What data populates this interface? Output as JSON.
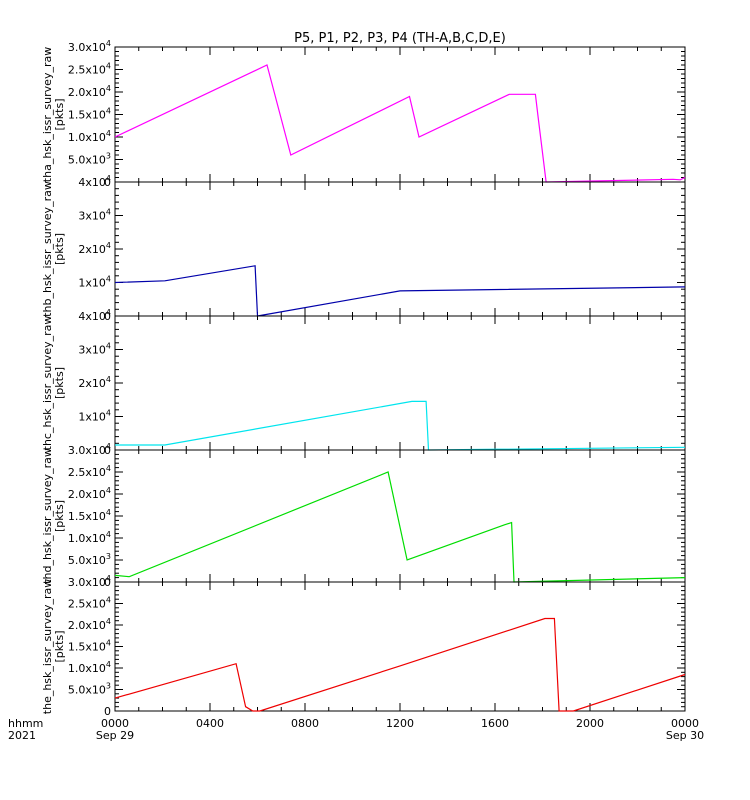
{
  "title": "P5, P1, P2, P3, P4 (TH-A,B,C,D,E)",
  "colors": {
    "tha": "#ff00ff",
    "thb": "#0000aa",
    "thc": "#00e5ee",
    "thd": "#00dd00",
    "the": "#ee0000",
    "axes": "#000000",
    "background": "#ffffff"
  },
  "x_axis": {
    "row_label_top": "hhmm",
    "row_label_bottom": "2021",
    "tick_labels": [
      "0000",
      "0400",
      "0800",
      "1200",
      "1600",
      "2000",
      "0000"
    ],
    "date_labels": [
      {
        "at_hour": 0,
        "text": "Sep 29"
      },
      {
        "at_hour": 24,
        "text": "Sep 30"
      }
    ]
  },
  "chart_data": [
    {
      "type": "line",
      "probe": "tha",
      "ylabel": "tha_hsk_issr_survey_raw",
      "unit": "[pkts]",
      "xlim": [
        0,
        24
      ],
      "ylim": [
        0,
        30000
      ],
      "yticks": [
        0,
        5000,
        10000,
        15000,
        20000,
        25000,
        30000
      ],
      "ytick_labels": [
        "0",
        "5.0x10^3",
        "1.0x10^4",
        "1.5x10^4",
        "2.0x10^4",
        "2.5x10^4",
        "3.0x10^4"
      ],
      "color_key": "tha",
      "series": [
        {
          "x": [
            0,
            6.4,
            7.4,
            12.4,
            12.8,
            16.6,
            17.7,
            17.8,
            18.15,
            23.5,
            23.8,
            24
          ],
          "y": [
            10000,
            26000,
            6000,
            19000,
            10000,
            19500,
            19500,
            15000,
            0,
            600,
            500,
            1000
          ]
        }
      ]
    },
    {
      "type": "line",
      "probe": "thb",
      "ylabel": "thb_hsk_issr_survey_raw",
      "unit": "[pkts]",
      "xlim": [
        0,
        24
      ],
      "ylim": [
        0,
        40000
      ],
      "yticks": [
        0,
        10000,
        20000,
        30000,
        40000
      ],
      "ytick_labels": [
        "0",
        "1x10^4",
        "2x10^4",
        "3x10^4",
        "4x10^4"
      ],
      "color_key": "thb",
      "series": [
        {
          "x": [
            0,
            2.1,
            5.9,
            6.0,
            12.0,
            24
          ],
          "y": [
            10000,
            10500,
            15000,
            0,
            7500,
            8700
          ]
        }
      ]
    },
    {
      "type": "line",
      "probe": "thc",
      "ylabel": "thc_hsk_issr_survey_raw",
      "unit": "[pkts]",
      "xlim": [
        0,
        24
      ],
      "ylim": [
        0,
        40000
      ],
      "yticks": [
        0,
        10000,
        20000,
        30000,
        40000
      ],
      "ytick_labels": [
        "0",
        "1x10^4",
        "2x10^4",
        "3x10^4",
        "4x10^4"
      ],
      "color_key": "thc",
      "series": [
        {
          "x": [
            0,
            2.1,
            12.5,
            13.1,
            13.2,
            24
          ],
          "y": [
            1500,
            1500,
            14500,
            14500,
            0,
            800
          ]
        }
      ]
    },
    {
      "type": "line",
      "probe": "thd",
      "ylabel": "thd_hsk_issr_survey_raw",
      "unit": "[pkts]",
      "xlim": [
        0,
        24
      ],
      "ylim": [
        0,
        30000
      ],
      "yticks": [
        0,
        5000,
        10000,
        15000,
        20000,
        25000,
        30000
      ],
      "ytick_labels": [
        "0",
        "5.0x10^3",
        "1.0x10^4",
        "1.5x10^4",
        "2.0x10^4",
        "2.5x10^4",
        "3.0x10^4"
      ],
      "color_key": "thd",
      "series": [
        {
          "x": [
            0,
            0.6,
            11.5,
            12.3,
            16.4,
            16.7,
            16.8,
            24
          ],
          "y": [
            1500,
            1200,
            25000,
            5000,
            13000,
            13500,
            0,
            1000
          ]
        }
      ]
    },
    {
      "type": "line",
      "probe": "the",
      "ylabel": "the_hsk_issr_survey_raw",
      "unit": "[pkts]",
      "xlim": [
        0,
        24
      ],
      "ylim": [
        0,
        30000
      ],
      "yticks": [
        0,
        5000,
        10000,
        15000,
        20000,
        25000,
        30000
      ],
      "ytick_labels": [
        "0",
        "5.0x10^3",
        "1.0x10^4",
        "1.5x10^4",
        "2.0x10^4",
        "2.5x10^4",
        "3.0x10^4"
      ],
      "color_key": "the",
      "series": [
        {
          "x": [
            0,
            5.1,
            5.5,
            5.8,
            6.1,
            12.0,
            18.1,
            18.5,
            18.7,
            19.3,
            24
          ],
          "y": [
            3000,
            11000,
            1000,
            0,
            0,
            10500,
            21500,
            21500,
            0,
            0,
            8500
          ]
        }
      ]
    }
  ]
}
